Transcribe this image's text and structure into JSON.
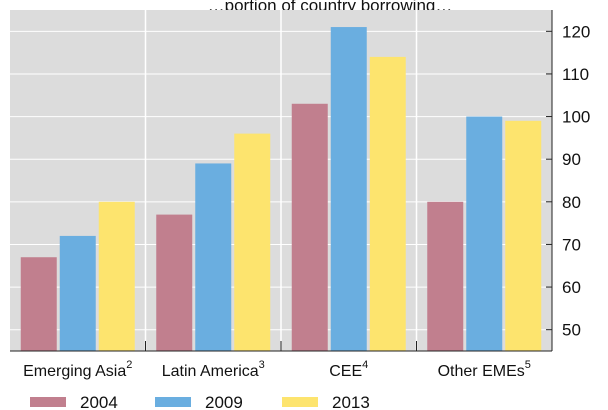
{
  "chart_data": {
    "type": "bar",
    "title": "…portion of country borrowing…",
    "categories": [
      {
        "name": "Emerging Asia",
        "note": "2"
      },
      {
        "name": "Latin America",
        "note": "3"
      },
      {
        "name": "CEE",
        "note": "4"
      },
      {
        "name": "Other EMEs",
        "note": "5"
      }
    ],
    "series": [
      {
        "name": "2004",
        "color": "#c17f8e",
        "values": [
          67,
          77,
          103,
          80
        ]
      },
      {
        "name": "2009",
        "color": "#6aaee0",
        "values": [
          72,
          89,
          121,
          100
        ]
      },
      {
        "name": "2013",
        "color": "#fde46e",
        "values": [
          80,
          96,
          114,
          99
        ]
      }
    ],
    "ylim": [
      45,
      125
    ],
    "yticks": [
      50,
      60,
      70,
      80,
      90,
      100,
      110,
      120
    ],
    "y_axis_side": "right",
    "grid": true,
    "background": "#dcdcdc",
    "legend_position": "bottom"
  }
}
